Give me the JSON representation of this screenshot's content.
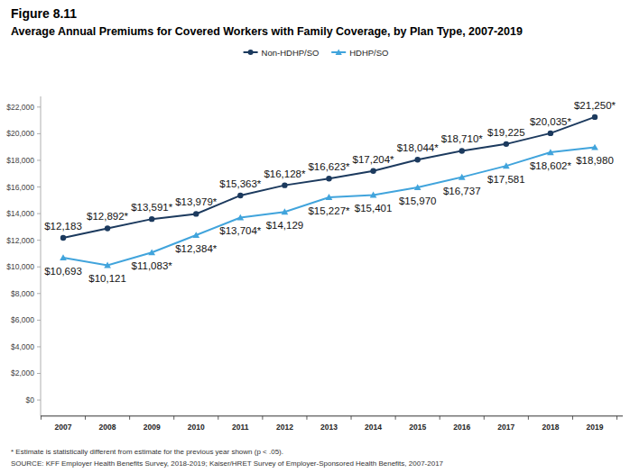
{
  "chart_data": {
    "type": "line",
    "title": "Figure 8.11",
    "subtitle": "Average Annual Premiums for Covered Workers with Family Coverage, by Plan Type, 2007-2019",
    "categories": [
      "2007",
      "2008",
      "2009",
      "2010",
      "2011",
      "2012",
      "2013",
      "2014",
      "2015",
      "2016",
      "2017",
      "2018",
      "2019"
    ],
    "series": [
      {
        "name": "Non-HDHP/SO",
        "color": "#1c3a5e",
        "marker": "circle",
        "values": [
          12183,
          12892,
          13591,
          13979,
          15363,
          16128,
          16623,
          17204,
          18044,
          18710,
          19225,
          20035,
          21250
        ],
        "value_labels": [
          "$12,183",
          "$12,892*",
          "$13,591*",
          "$13,979*",
          "$15,363*",
          "$16,128*",
          "$16,623*",
          "$17,204*",
          "$18,044*",
          "$18,710*",
          "$19,225",
          "$20,035*",
          "$21,250*"
        ]
      },
      {
        "name": "HDHP/SO",
        "color": "#41a4dc",
        "marker": "triangle",
        "values": [
          10693,
          10121,
          11083,
          12384,
          13704,
          14129,
          15227,
          15401,
          15970,
          16737,
          17581,
          18602,
          18980
        ],
        "value_labels": [
          "$10,693",
          "$10,121",
          "$11,083*",
          "$12,384*",
          "$13,704*",
          "$14,129",
          "$15,227*",
          "$15,401",
          "$15,970",
          "$16,737",
          "$17,581",
          "$18,602*",
          "$18,980"
        ]
      }
    ],
    "ylim": [
      -1200,
      22800
    ],
    "yticks": [
      {
        "value": 0,
        "label": "$0"
      },
      {
        "value": 2000,
        "label": "$2,000"
      },
      {
        "value": 4000,
        "label": "$4,000"
      },
      {
        "value": 6000,
        "label": "$6,000"
      },
      {
        "value": 8000,
        "label": "$8,000"
      },
      {
        "value": 10000,
        "label": "$10,000"
      },
      {
        "value": 12000,
        "label": "$12,000"
      },
      {
        "value": 14000,
        "label": "$14,000"
      },
      {
        "value": 16000,
        "label": "$16,000"
      },
      {
        "value": 18000,
        "label": "$18,000"
      },
      {
        "value": 20000,
        "label": "$20,000"
      },
      {
        "value": 22000,
        "label": "$22,000"
      }
    ],
    "grid": false,
    "legend": "top",
    "data_labels": true,
    "annotations": [
      "* Estimate is statistically different from estimate for the previous year shown (p < .05).",
      "SOURCE: KFF Employer Health Benefits Survey, 2018-2019; Kaiser/HRET Survey of Employer-Sponsored Health Benefits, 2007-2017"
    ]
  }
}
